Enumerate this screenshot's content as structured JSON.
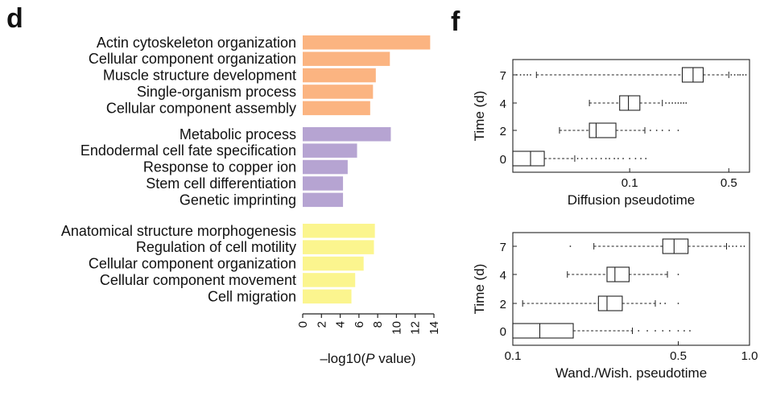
{
  "chart_data": [
    {
      "type": "bar",
      "orientation": "horizontal",
      "panel": "d",
      "xlabel_prefix": "–log10(",
      "xlabel_var": "P",
      "xlabel_suffix": " value)",
      "xlim": [
        0,
        14
      ],
      "xticks": [
        "0",
        "2",
        "4",
        "6",
        "8",
        "10",
        "12",
        "14"
      ],
      "groups": [
        {
          "color": "#fbb481",
          "categories": [
            "Actin cytoskeleton organization",
            "Cellular component organization",
            "Muscle structure development",
            "Single-organism process",
            "Cellular component assembly"
          ],
          "values": [
            13.6,
            9.3,
            7.8,
            7.5,
            7.2
          ]
        },
        {
          "color": "#b6a4d2",
          "categories": [
            "Metabolic process",
            "Endodermal cell fate specification",
            "Response to copper ion",
            "Stem cell differentiation",
            "Genetic imprinting"
          ],
          "values": [
            9.4,
            5.8,
            4.8,
            4.3,
            4.3
          ]
        },
        {
          "color": "#fbf58e",
          "categories": [
            "Anatomical structure morphogenesis",
            "Regulation of cell motility",
            "Cellular component organization",
            "Cellular component movement",
            "Cell migration"
          ],
          "values": [
            7.7,
            7.6,
            6.5,
            5.6,
            5.2
          ]
        }
      ]
    },
    {
      "type": "boxplot",
      "orientation": "horizontal",
      "panel": "f",
      "xlabel": "Diffusion pseudotime",
      "ylabel": "Time (d)",
      "xscale": "log",
      "xlim": [
        0.015,
        0.7
      ],
      "xticks": [
        {
          "v": 0.1,
          "label": "0.1"
        },
        {
          "v": 0.5,
          "label": "0.5"
        }
      ],
      "categories": [
        "7",
        "4",
        "2",
        "0"
      ],
      "boxes": [
        {
          "whislo": 0.022,
          "q1": 0.235,
          "med": 0.28,
          "q3": 0.33,
          "whishi": 0.5,
          "fliers_lo": [
            0.016,
            0.017,
            0.018,
            0.019,
            0.02
          ],
          "fliers_hi": [
            0.52,
            0.55,
            0.58,
            0.6,
            0.63,
            0.66
          ]
        },
        {
          "whislo": 0.052,
          "q1": 0.085,
          "med": 0.098,
          "q3": 0.118,
          "whishi": 0.17,
          "fliers_hi": [
            0.18,
            0.19,
            0.2,
            0.21,
            0.22,
            0.23,
            0.24,
            0.25
          ]
        },
        {
          "whislo": 0.032,
          "q1": 0.052,
          "med": 0.058,
          "q3": 0.08,
          "whishi": 0.128,
          "fliers_hi": [
            0.14,
            0.155,
            0.17,
            0.19,
            0.22
          ]
        },
        {
          "whislo": 0.015,
          "q1": 0.015,
          "med": 0.02,
          "q3": 0.025,
          "whishi": 0.041,
          "fliers_hi": [
            0.043,
            0.046,
            0.05,
            0.054,
            0.058,
            0.063,
            0.068,
            0.072,
            0.078,
            0.083,
            0.09,
            0.1,
            0.11,
            0.12,
            0.13
          ]
        }
      ]
    },
    {
      "type": "boxplot",
      "orientation": "horizontal",
      "xlabel": "Wand./Wish. pseudotime",
      "ylabel": "Time (d)",
      "xscale": "log",
      "xlim": [
        0.1,
        1.0
      ],
      "xticks": [
        {
          "v": 0.1,
          "label": "0.1"
        },
        {
          "v": 0.5,
          "label": "0.5"
        },
        {
          "v": 1.0,
          "label": "1.0"
        }
      ],
      "categories": [
        "7",
        "4",
        "2",
        "0"
      ],
      "boxes": [
        {
          "whislo": 0.22,
          "q1": 0.43,
          "med": 0.48,
          "q3": 0.55,
          "whishi": 0.8,
          "fliers_lo": [
            0.175
          ],
          "fliers_hi": [
            0.82,
            0.85,
            0.88,
            0.92,
            0.95
          ]
        },
        {
          "whislo": 0.17,
          "q1": 0.25,
          "med": 0.27,
          "q3": 0.31,
          "whishi": 0.45,
          "fliers_hi": [
            0.5
          ]
        },
        {
          "whislo": 0.11,
          "q1": 0.23,
          "med": 0.25,
          "q3": 0.29,
          "whishi": 0.4,
          "fliers_hi": [
            0.42,
            0.44,
            0.5
          ]
        },
        {
          "whislo": 0.1,
          "q1": 0.1,
          "med": 0.13,
          "q3": 0.18,
          "whishi": 0.32,
          "fliers_hi": [
            0.34,
            0.37,
            0.4,
            0.43,
            0.46,
            0.5,
            0.53,
            0.56
          ]
        }
      ]
    }
  ]
}
